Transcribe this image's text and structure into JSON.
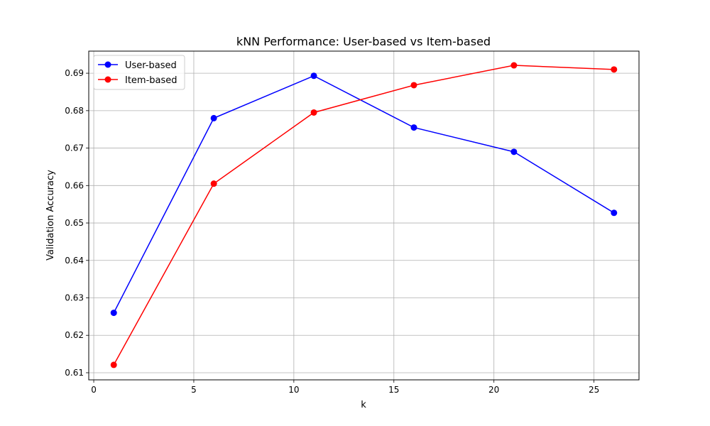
{
  "chart_data": {
    "type": "line",
    "title": "kNN Performance: User-based vs Item-based",
    "xlabel": "k",
    "ylabel": "Validation Accuracy",
    "xlim": [
      -0.25,
      27.25
    ],
    "ylim": [
      0.6081,
      0.6959
    ],
    "xticks": [
      0,
      5,
      10,
      15,
      20,
      25
    ],
    "yticks": [
      0.61,
      0.62,
      0.63,
      0.64,
      0.65,
      0.66,
      0.67,
      0.68,
      0.69
    ],
    "x": [
      1,
      6,
      11,
      16,
      21,
      26
    ],
    "grid": true,
    "legend_position": "top-left",
    "series": [
      {
        "name": "User-based",
        "color": "#0000ff",
        "values": [
          0.626,
          0.678,
          0.6893,
          0.6755,
          0.669,
          0.6527
        ]
      },
      {
        "name": "Item-based",
        "color": "#ff0000",
        "values": [
          0.6121,
          0.6605,
          0.6795,
          0.6868,
          0.6921,
          0.691
        ]
      }
    ]
  }
}
